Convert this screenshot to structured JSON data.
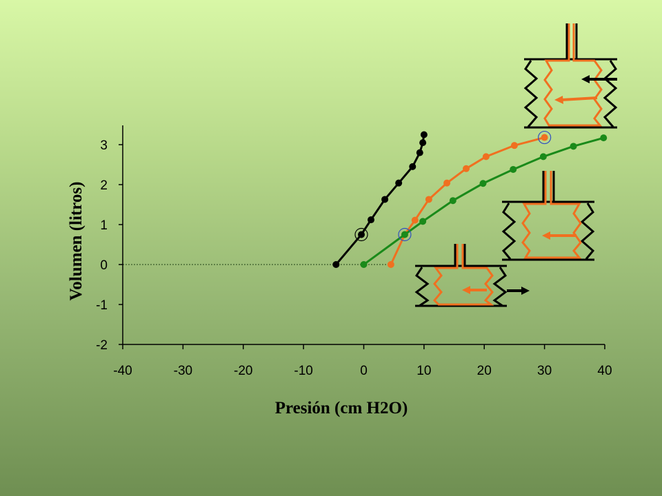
{
  "chart_data": {
    "type": "line",
    "title": "",
    "xlabel": "Presión  (cm H2O)",
    "ylabel": "Volumen  (litros)",
    "xlim": [
      -40,
      40
    ],
    "ylim": [
      -2,
      3.5
    ],
    "xticks": [
      -40,
      -30,
      -20,
      -10,
      0,
      10,
      20,
      30,
      40
    ],
    "yticks": [
      -2,
      -1,
      0,
      1,
      2,
      3
    ],
    "grid": false,
    "legend": "none",
    "reference_line": {
      "y": 0,
      "from_x": -40,
      "to_x": 4.5,
      "style": "dotted",
      "color": "#3a5a2a"
    },
    "series": [
      {
        "color": "#000000",
        "x": [
          -4.6,
          -0.4,
          1.2,
          3.5,
          5.8,
          8.1,
          9.3,
          9.8,
          10.0
        ],
        "y": [
          0.0,
          0.75,
          1.12,
          1.63,
          2.04,
          2.45,
          2.8,
          3.05,
          3.25
        ],
        "circled_point_index": 1
      },
      {
        "color": "#f07020",
        "x": [
          4.5,
          6.8,
          8.5,
          10.8,
          13.8,
          17.0,
          20.3,
          25.0,
          30.0
        ],
        "y": [
          0.0,
          0.75,
          1.11,
          1.63,
          2.04,
          2.4,
          2.7,
          2.98,
          3.18
        ],
        "circled_point_index": 8
      },
      {
        "color": "#1a8a1a",
        "x": [
          0.0,
          6.8,
          9.8,
          14.8,
          19.8,
          24.8,
          29.8,
          34.8,
          39.8
        ],
        "y": [
          0.0,
          0.75,
          1.08,
          1.6,
          2.03,
          2.38,
          2.7,
          2.96,
          3.17
        ],
        "circled_point_index": 1
      }
    ]
  },
  "colors": {
    "background_top": "#d8f7a6",
    "background_bottom": "#6f8f52",
    "lung": "#f07020",
    "chest_wall": "#000000",
    "circle_marker": "#3050c0"
  },
  "illustrations": [
    {
      "name": "expanded-chest",
      "chest_arrow": "left",
      "lung_arrow": "left",
      "icon": "lung-chest-diagram-icon"
    },
    {
      "name": "middle-chest",
      "chest_arrow": "none",
      "lung_arrow": "left",
      "icon": "lung-chest-diagram-icon"
    },
    {
      "name": "small-chest",
      "chest_arrow": "right",
      "lung_arrow": "left",
      "icon": "lung-chest-diagram-icon"
    }
  ]
}
